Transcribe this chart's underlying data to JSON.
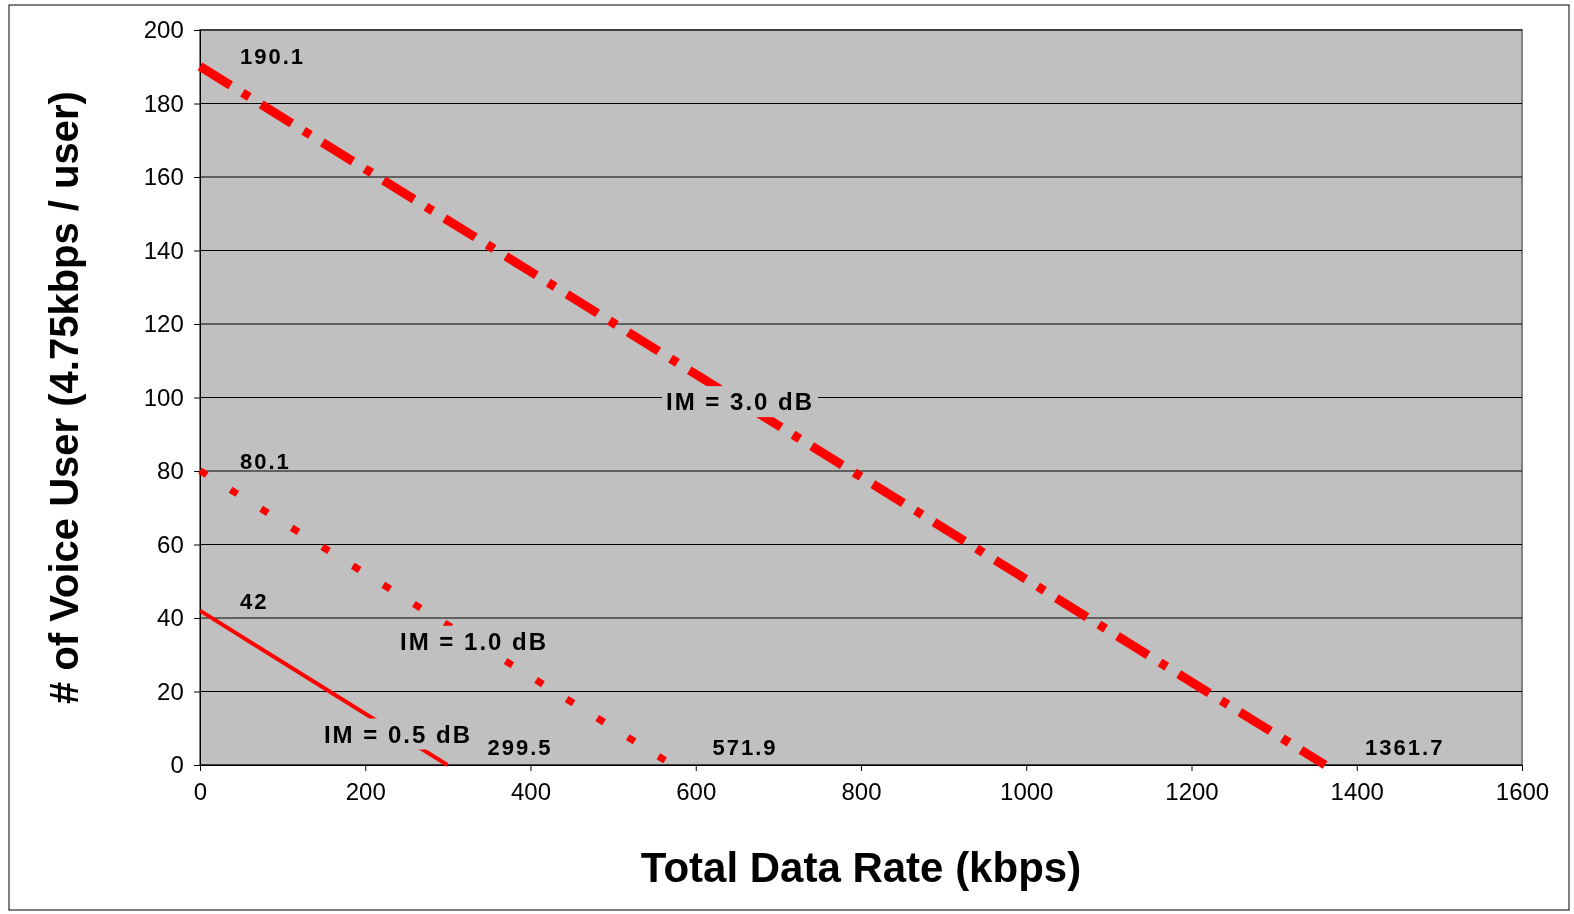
{
  "chart_data": {
    "type": "line",
    "xlabel": "Total Data Rate (kbps)",
    "ylabel": "# of Voice User (4.75kbps / user)",
    "xlim": [
      0,
      1600
    ],
    "xticks": [
      0,
      200,
      400,
      600,
      800,
      1000,
      1200,
      1400,
      1600
    ],
    "ylim": [
      0,
      200
    ],
    "yticks": [
      0,
      20,
      40,
      60,
      80,
      100,
      120,
      140,
      160,
      180,
      200
    ],
    "grid": "y",
    "marker": "none",
    "series": [
      {
        "name": "IM = 3.0 dB",
        "color": "#ff0000",
        "line_style": "dashed",
        "x": [
          0,
          1361.7
        ],
        "values": [
          190.1,
          0
        ]
      },
      {
        "name": "IM = 1.0 dB",
        "color": "#ff0000",
        "line_style": "dotted",
        "x": [
          0,
          571.9
        ],
        "values": [
          80.1,
          0
        ]
      },
      {
        "name": "IM = 0.5 dB",
        "color": "#ff0000",
        "line_style": "solid",
        "x": [
          0,
          299.5
        ],
        "values": [
          42,
          0
        ]
      }
    ],
    "annotations": [
      {
        "text": "190.1",
        "x": 0,
        "y": 190.1
      },
      {
        "text": "80.1",
        "x": 0,
        "y": 80.1
      },
      {
        "text": "42",
        "x": 0,
        "y": 42
      },
      {
        "text": "1361.7",
        "x": 1361.7,
        "y": 0
      },
      {
        "text": "571.9",
        "x": 571.9,
        "y": 0
      },
      {
        "text": "299.5",
        "x": 299.5,
        "y": 0
      }
    ]
  }
}
